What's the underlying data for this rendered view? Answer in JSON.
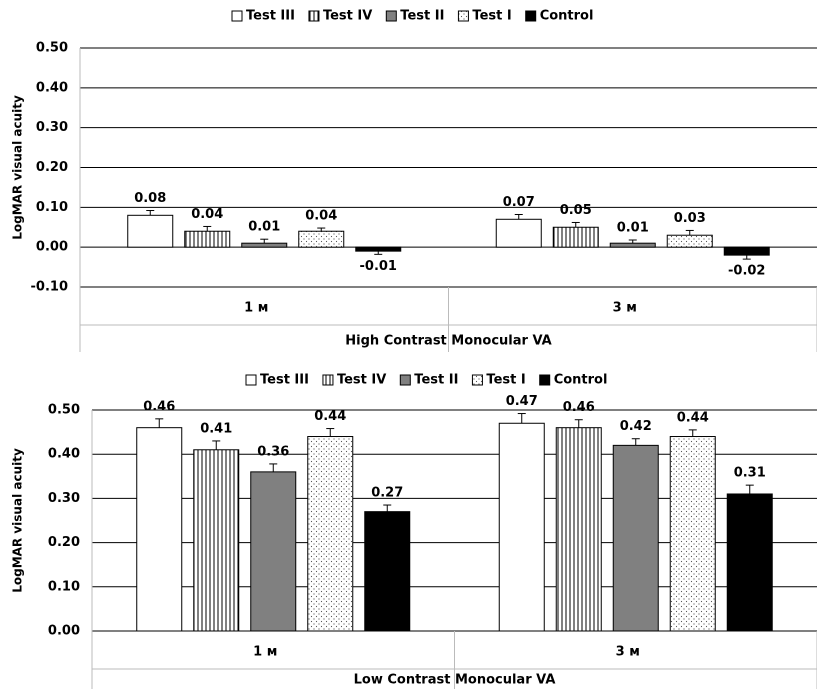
{
  "chart_data": [
    {
      "type": "bar",
      "x_label": "High Contrast Monocular VA",
      "y_label": "LogMAR visual acuity",
      "categories": [
        "1 м",
        "3 м"
      ],
      "series": [
        {
          "name": "Test  III",
          "color": "#ffffff",
          "pattern": null,
          "values": [
            0.08,
            0.07
          ],
          "errors": [
            0.012,
            0.012
          ]
        },
        {
          "name": "Test  IV",
          "color": "#ffffff",
          "pattern": "vertical-lines",
          "values": [
            0.04,
            0.05
          ],
          "errors": [
            0.012,
            0.012
          ]
        },
        {
          "name": "Test II",
          "color": "#808080",
          "pattern": null,
          "values": [
            0.01,
            0.01
          ],
          "errors": [
            0.01,
            0.008
          ]
        },
        {
          "name": "Test I",
          "color": "#ffffff",
          "pattern": "dots",
          "values": [
            0.04,
            0.03
          ],
          "errors": [
            0.008,
            0.012
          ]
        },
        {
          "name": "Control",
          "color": "#000000",
          "pattern": null,
          "values": [
            -0.01,
            -0.02
          ],
          "errors": [
            0.008,
            0.01
          ]
        }
      ],
      "ylim": [
        -0.1,
        0.5
      ],
      "yticks": [
        {
          "value": -0.1,
          "label": "-0.10"
        },
        {
          "value": 0,
          "label": "0.00"
        },
        {
          "value": 0.1,
          "label": "0.10"
        },
        {
          "value": 0.2,
          "label": "0.20"
        },
        {
          "value": 0.3,
          "label": "0.30"
        },
        {
          "value": 0.4,
          "label": "0.40"
        },
        {
          "value": 0.5,
          "label": "0.50"
        }
      ],
      "grid": true,
      "legend": "top"
    },
    {
      "type": "bar",
      "x_label": "Low Contrast Monocular VA",
      "y_label": "LogMAR visual acuity",
      "categories": [
        "1 м",
        "3 м"
      ],
      "series": [
        {
          "name": "Test  III",
          "color": "#ffffff",
          "pattern": null,
          "values": [
            0.46,
            0.47
          ],
          "errors": [
            0.02,
            0.022
          ]
        },
        {
          "name": "Test  IV",
          "color": "#ffffff",
          "pattern": "vertical-lines",
          "values": [
            0.41,
            0.46
          ],
          "errors": [
            0.02,
            0.018
          ]
        },
        {
          "name": "Test II",
          "color": "#808080",
          "pattern": null,
          "values": [
            0.36,
            0.42
          ],
          "errors": [
            0.018,
            0.015
          ]
        },
        {
          "name": "Test I",
          "color": "#ffffff",
          "pattern": "dots",
          "values": [
            0.44,
            0.44
          ],
          "errors": [
            0.018,
            0.015
          ]
        },
        {
          "name": "Control",
          "color": "#000000",
          "pattern": null,
          "values": [
            0.27,
            0.31
          ],
          "errors": [
            0.015,
            0.02
          ]
        }
      ],
      "ylim": [
        0,
        0.5
      ],
      "yticks": [
        {
          "value": 0,
          "label": "0.00"
        },
        {
          "value": 0.1,
          "label": "0.10"
        },
        {
          "value": 0.2,
          "label": "0.20"
        },
        {
          "value": 0.3,
          "label": "0.30"
        },
        {
          "value": 0.4,
          "label": "0.40"
        },
        {
          "value": 0.5,
          "label": "0.50"
        }
      ],
      "grid": true,
      "legend": "top"
    }
  ]
}
